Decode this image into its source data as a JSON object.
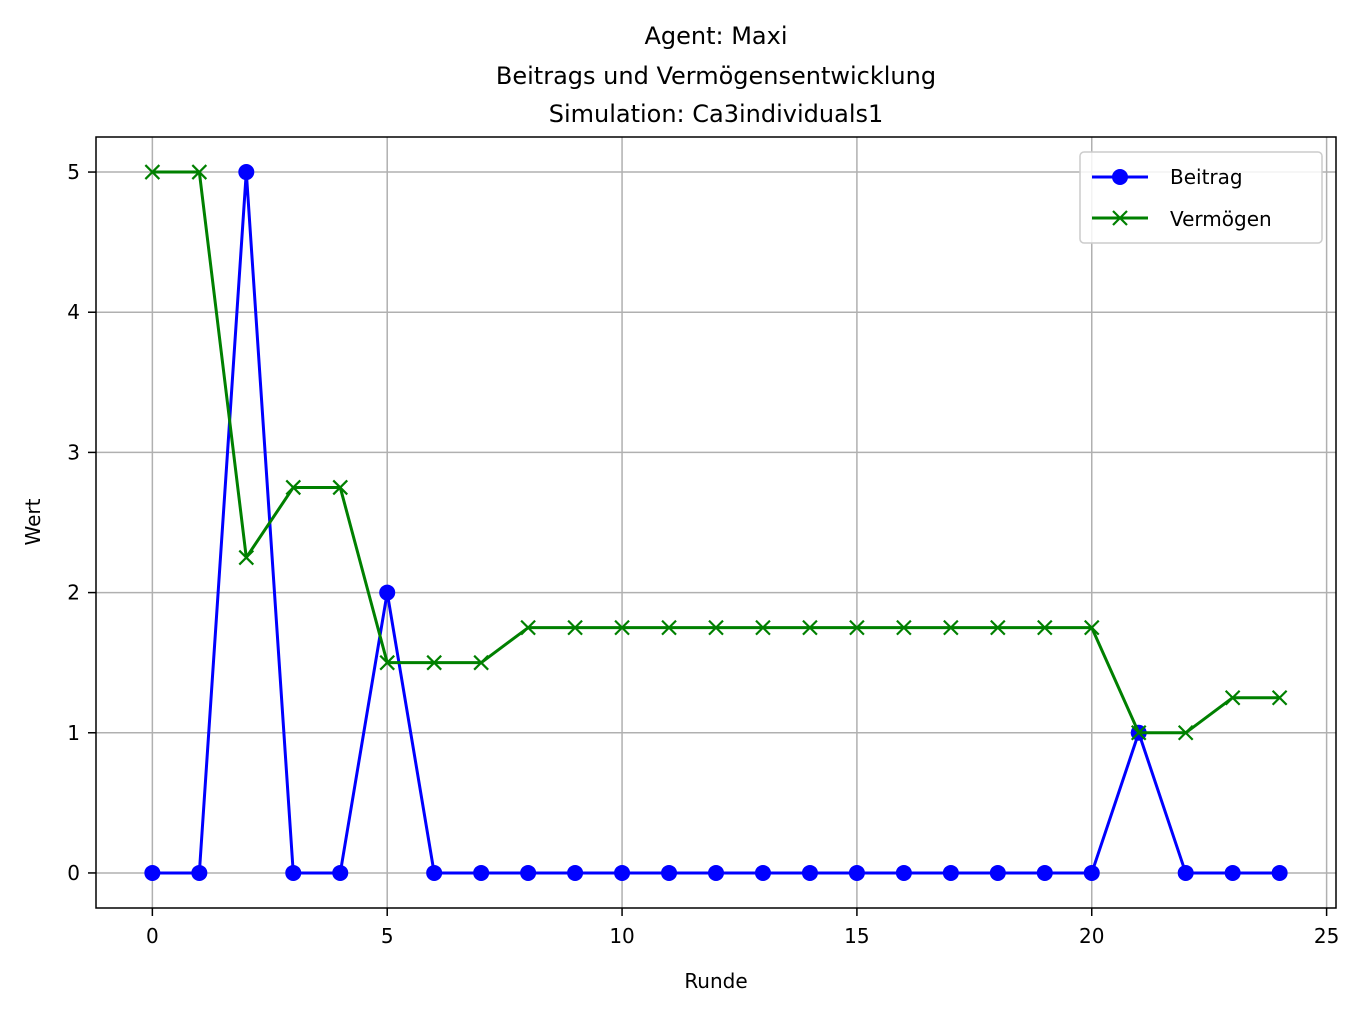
{
  "chart_data": {
    "type": "line",
    "title": [
      "Agent: Maxi",
      "Beitrags und Vermögensentwicklung",
      "Simulation: Ca3individuals1"
    ],
    "xlabel": "Runde",
    "ylabel": "Wert",
    "xlim": [
      -1.2,
      25.2
    ],
    "ylim": [
      -0.25,
      5.25
    ],
    "xticks": [
      0,
      5,
      10,
      15,
      20,
      25
    ],
    "yticks": [
      0,
      1,
      2,
      3,
      4,
      5
    ],
    "grid": true,
    "legend_position": "top-right",
    "x": [
      0,
      1,
      2,
      3,
      4,
      5,
      6,
      7,
      8,
      9,
      10,
      11,
      12,
      13,
      14,
      15,
      16,
      17,
      18,
      19,
      20,
      21,
      22,
      23,
      24
    ],
    "series": [
      {
        "name": "Beitrag",
        "color": "#0000ff",
        "marker": "circle",
        "values": [
          0,
          0,
          5,
          0,
          0,
          2,
          0,
          0,
          0,
          0,
          0,
          0,
          0,
          0,
          0,
          0,
          0,
          0,
          0,
          0,
          0,
          1,
          0,
          0,
          0
        ]
      },
      {
        "name": "Vermögen",
        "color": "#008000",
        "marker": "x",
        "values": [
          5,
          5,
          2.25,
          2.75,
          2.75,
          1.5,
          1.5,
          1.5,
          1.75,
          1.75,
          1.75,
          1.75,
          1.75,
          1.75,
          1.75,
          1.75,
          1.75,
          1.75,
          1.75,
          1.75,
          1.75,
          1,
          1,
          1.25,
          1.25
        ]
      }
    ]
  }
}
